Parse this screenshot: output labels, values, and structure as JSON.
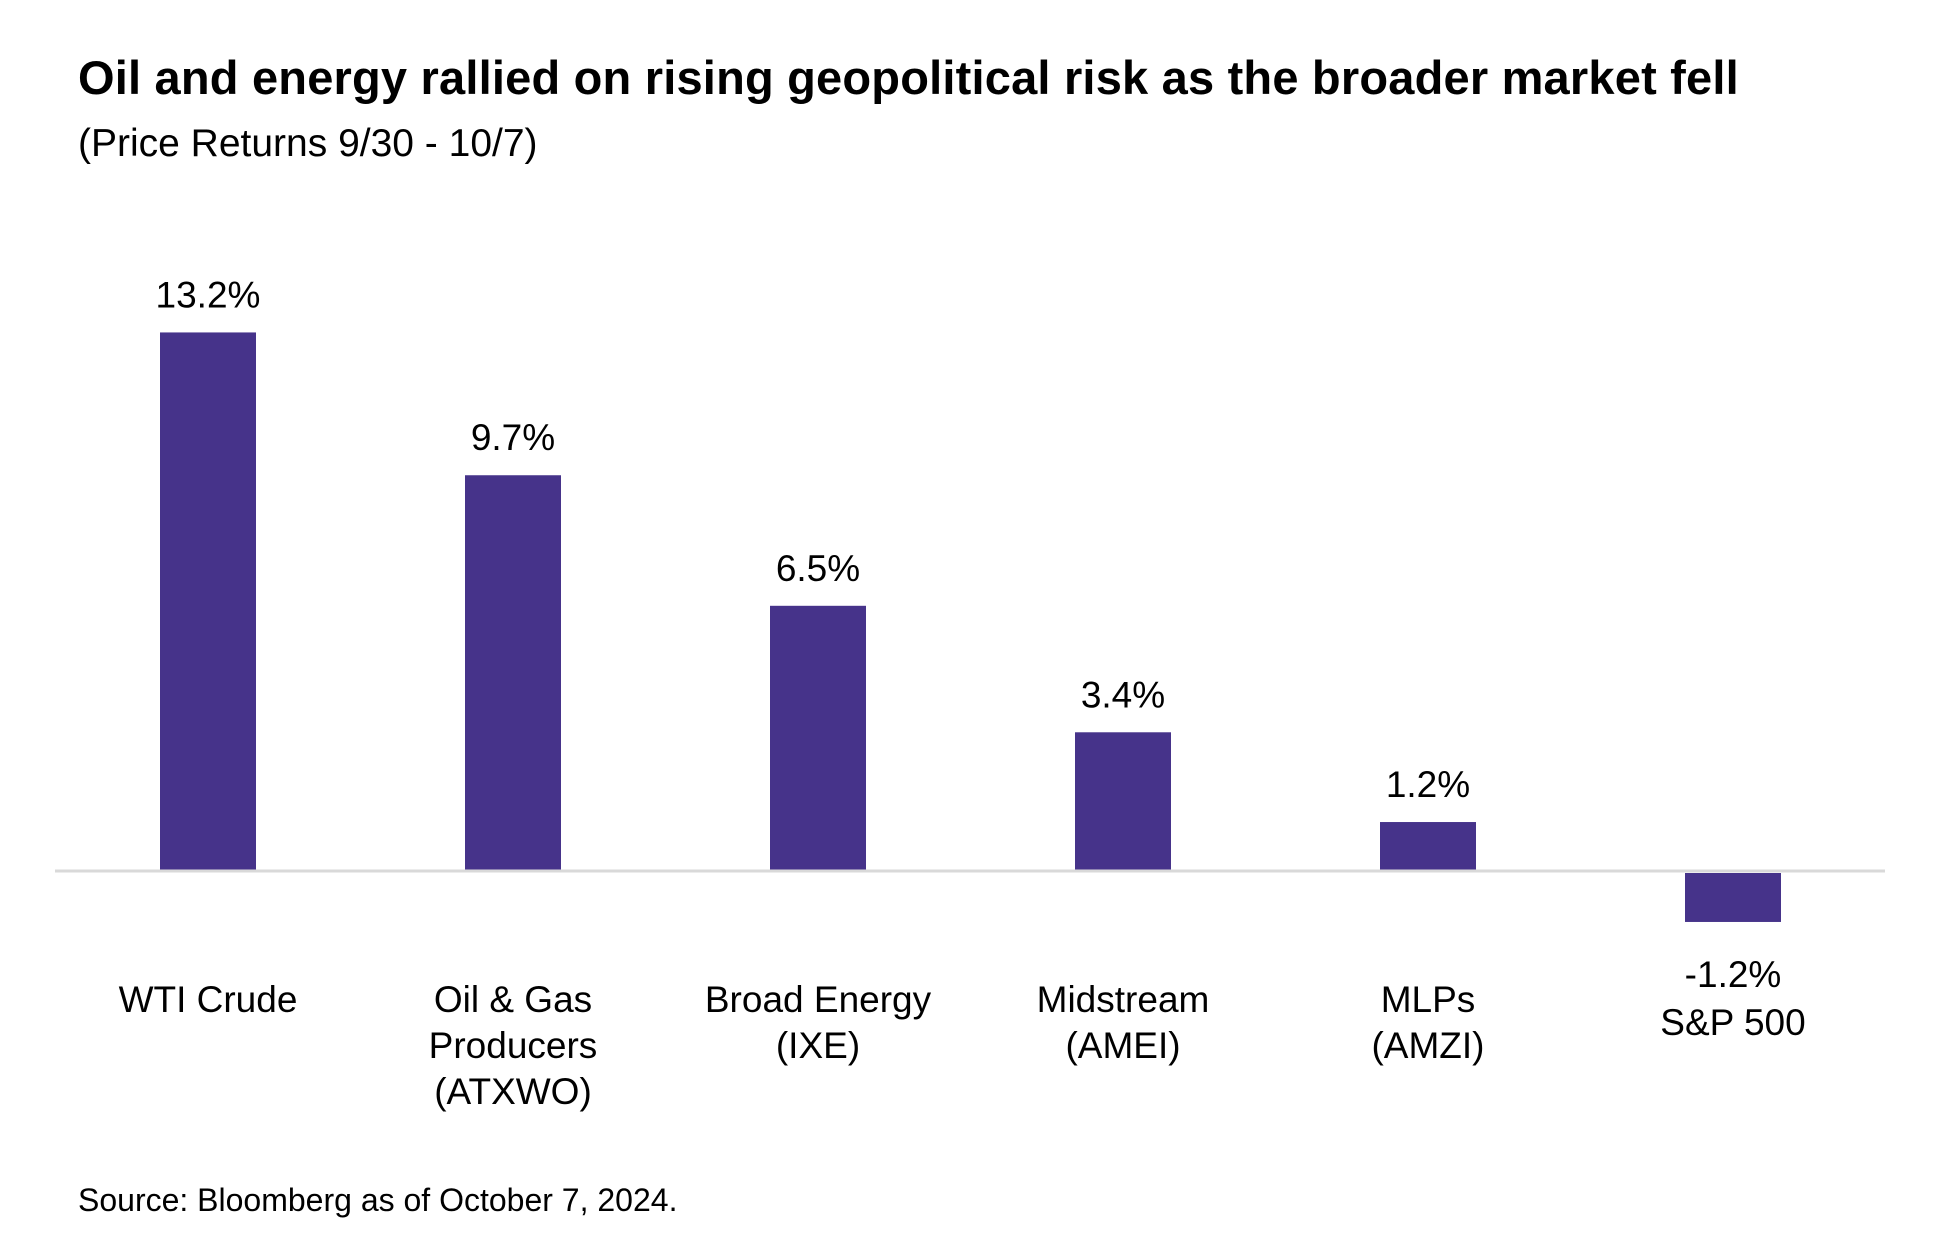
{
  "title": "Oil and energy rallied on rising geopolitical risk as the broader market fell",
  "subtitle": "(Price Returns 9/30 - 10/7)",
  "source": "Source: Bloomberg as of October 7, 2024.",
  "chart_data": {
    "type": "bar",
    "title": "Oil and energy rallied on rising geopolitical risk as the broader market fell",
    "subtitle": "(Price Returns 9/30 - 10/7)",
    "categories": [
      [
        "WTI Crude"
      ],
      [
        "Oil & Gas",
        "Producers",
        "(ATXWO)"
      ],
      [
        "Broad Energy",
        "(IXE)"
      ],
      [
        "Midstream",
        "(AMEI)"
      ],
      [
        "MLPs",
        "(AMZI)"
      ],
      [
        "S&P 500"
      ]
    ],
    "values": [
      13.2,
      9.7,
      6.5,
      3.4,
      1.2,
      -1.2
    ],
    "value_labels": [
      "13.2%",
      "9.7%",
      "6.5%",
      "3.4%",
      "1.2%",
      "-1.2%"
    ],
    "xlabel": "",
    "ylabel": "",
    "bar_color": "#46338a",
    "baseline_color": "#d9d9d9",
    "grid": false,
    "legend": "none"
  }
}
